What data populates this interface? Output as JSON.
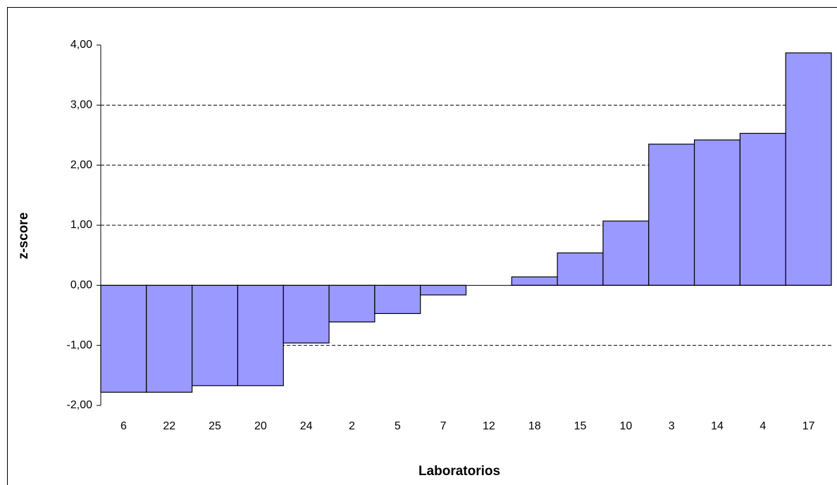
{
  "chart_data": {
    "type": "bar",
    "x_label": "Laboratorios",
    "y_label": "z-score",
    "categories": [
      "6",
      "22",
      "25",
      "20",
      "24",
      "2",
      "5",
      "7",
      "12",
      "18",
      "15",
      "10",
      "3",
      "14",
      "4",
      "17"
    ],
    "values": [
      -1.78,
      -1.78,
      -1.67,
      -1.67,
      -0.96,
      -0.61,
      -0.47,
      -0.16,
      0,
      0.14,
      0.54,
      1.07,
      2.35,
      2.42,
      2.53,
      3.87
    ],
    "color": "#9999ff",
    "ylim": [
      -2,
      4
    ],
    "yticks": [
      {
        "value": -2,
        "label": "-2,00"
      },
      {
        "value": -1,
        "label": "-1,00"
      },
      {
        "value": 0,
        "label": "0,00"
      },
      {
        "value": 1,
        "label": "1,00"
      },
      {
        "value": 2,
        "label": "2,00"
      },
      {
        "value": 3,
        "label": "3,00"
      },
      {
        "value": 4,
        "label": "4,00"
      }
    ],
    "grid": true
  }
}
